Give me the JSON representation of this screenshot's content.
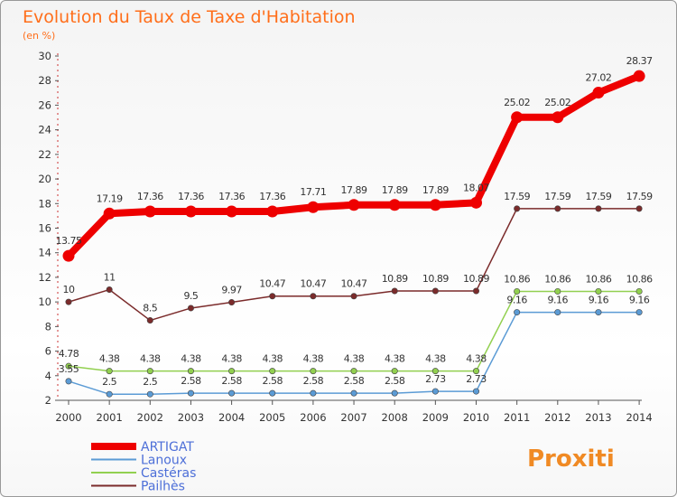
{
  "chart_data": {
    "type": "line",
    "title": "Evolution du Taux de Taxe d'Habitation",
    "subtitle": "(en %)",
    "xlabel": "",
    "ylabel": "",
    "x": [
      "2000",
      "2001",
      "2002",
      "2003",
      "2004",
      "2005",
      "2006",
      "2007",
      "2008",
      "2009",
      "2010",
      "2011",
      "2012",
      "2013",
      "2014"
    ],
    "ylim": [
      2,
      30
    ],
    "yticks": [
      2,
      4,
      6,
      8,
      10,
      12,
      14,
      16,
      18,
      20,
      22,
      24,
      26,
      28,
      30
    ],
    "grid": false,
    "legend_position": "bottom-left",
    "series": [
      {
        "name": "ARTIGAT",
        "color": "#ee0000",
        "values": [
          13.75,
          17.19,
          17.36,
          17.36,
          17.36,
          17.36,
          17.71,
          17.89,
          17.89,
          17.89,
          18.07,
          25.02,
          25.02,
          27.02,
          28.37
        ],
        "labels": [
          "13.75",
          "17.19",
          "17.36",
          "17.36",
          "17.36",
          "17.36",
          "17.71",
          "17.89",
          "17.89",
          "17.89",
          "18.07",
          "25.02",
          "25.02",
          "27.02",
          "28.37"
        ]
      },
      {
        "name": "Lanoux",
        "color": "#5b9bd5",
        "values": [
          3.55,
          2.5,
          2.5,
          2.58,
          2.58,
          2.58,
          2.58,
          2.58,
          2.58,
          2.73,
          2.73,
          9.16,
          9.16,
          9.16,
          9.16
        ],
        "labels": [
          "3.55",
          "2.5",
          "2.5",
          "2.58",
          "2.58",
          "2.58",
          "2.58",
          "2.58",
          "2.58",
          "2.73",
          "2.73",
          "9.16",
          "9.16",
          "9.16",
          "9.16"
        ]
      },
      {
        "name": "Castéras",
        "color": "#92d050",
        "values": [
          4.78,
          4.38,
          4.38,
          4.38,
          4.38,
          4.38,
          4.38,
          4.38,
          4.38,
          4.38,
          4.38,
          10.86,
          10.86,
          10.86,
          10.86
        ],
        "labels": [
          "4.78",
          "4.38",
          "4.38",
          "4.38",
          "4.38",
          "4.38",
          "4.38",
          "4.38",
          "4.38",
          "4.38",
          "4.38",
          "10.86",
          "10.86",
          "10.86",
          "10.86"
        ]
      },
      {
        "name": "Pailhès",
        "color": "#7b2b2b",
        "values": [
          10,
          11,
          8.5,
          9.5,
          9.97,
          10.47,
          10.47,
          10.47,
          10.89,
          10.89,
          10.89,
          17.59,
          17.59,
          17.59,
          17.59
        ],
        "labels": [
          "10",
          "11",
          "8.5",
          "9.5",
          "9.97",
          "10.47",
          "10.47",
          "10.47",
          "10.89",
          "10.89",
          "10.89",
          "17.59",
          "17.59",
          "17.59",
          "17.59"
        ]
      }
    ]
  },
  "logo": {
    "text": "Proxiti"
  }
}
